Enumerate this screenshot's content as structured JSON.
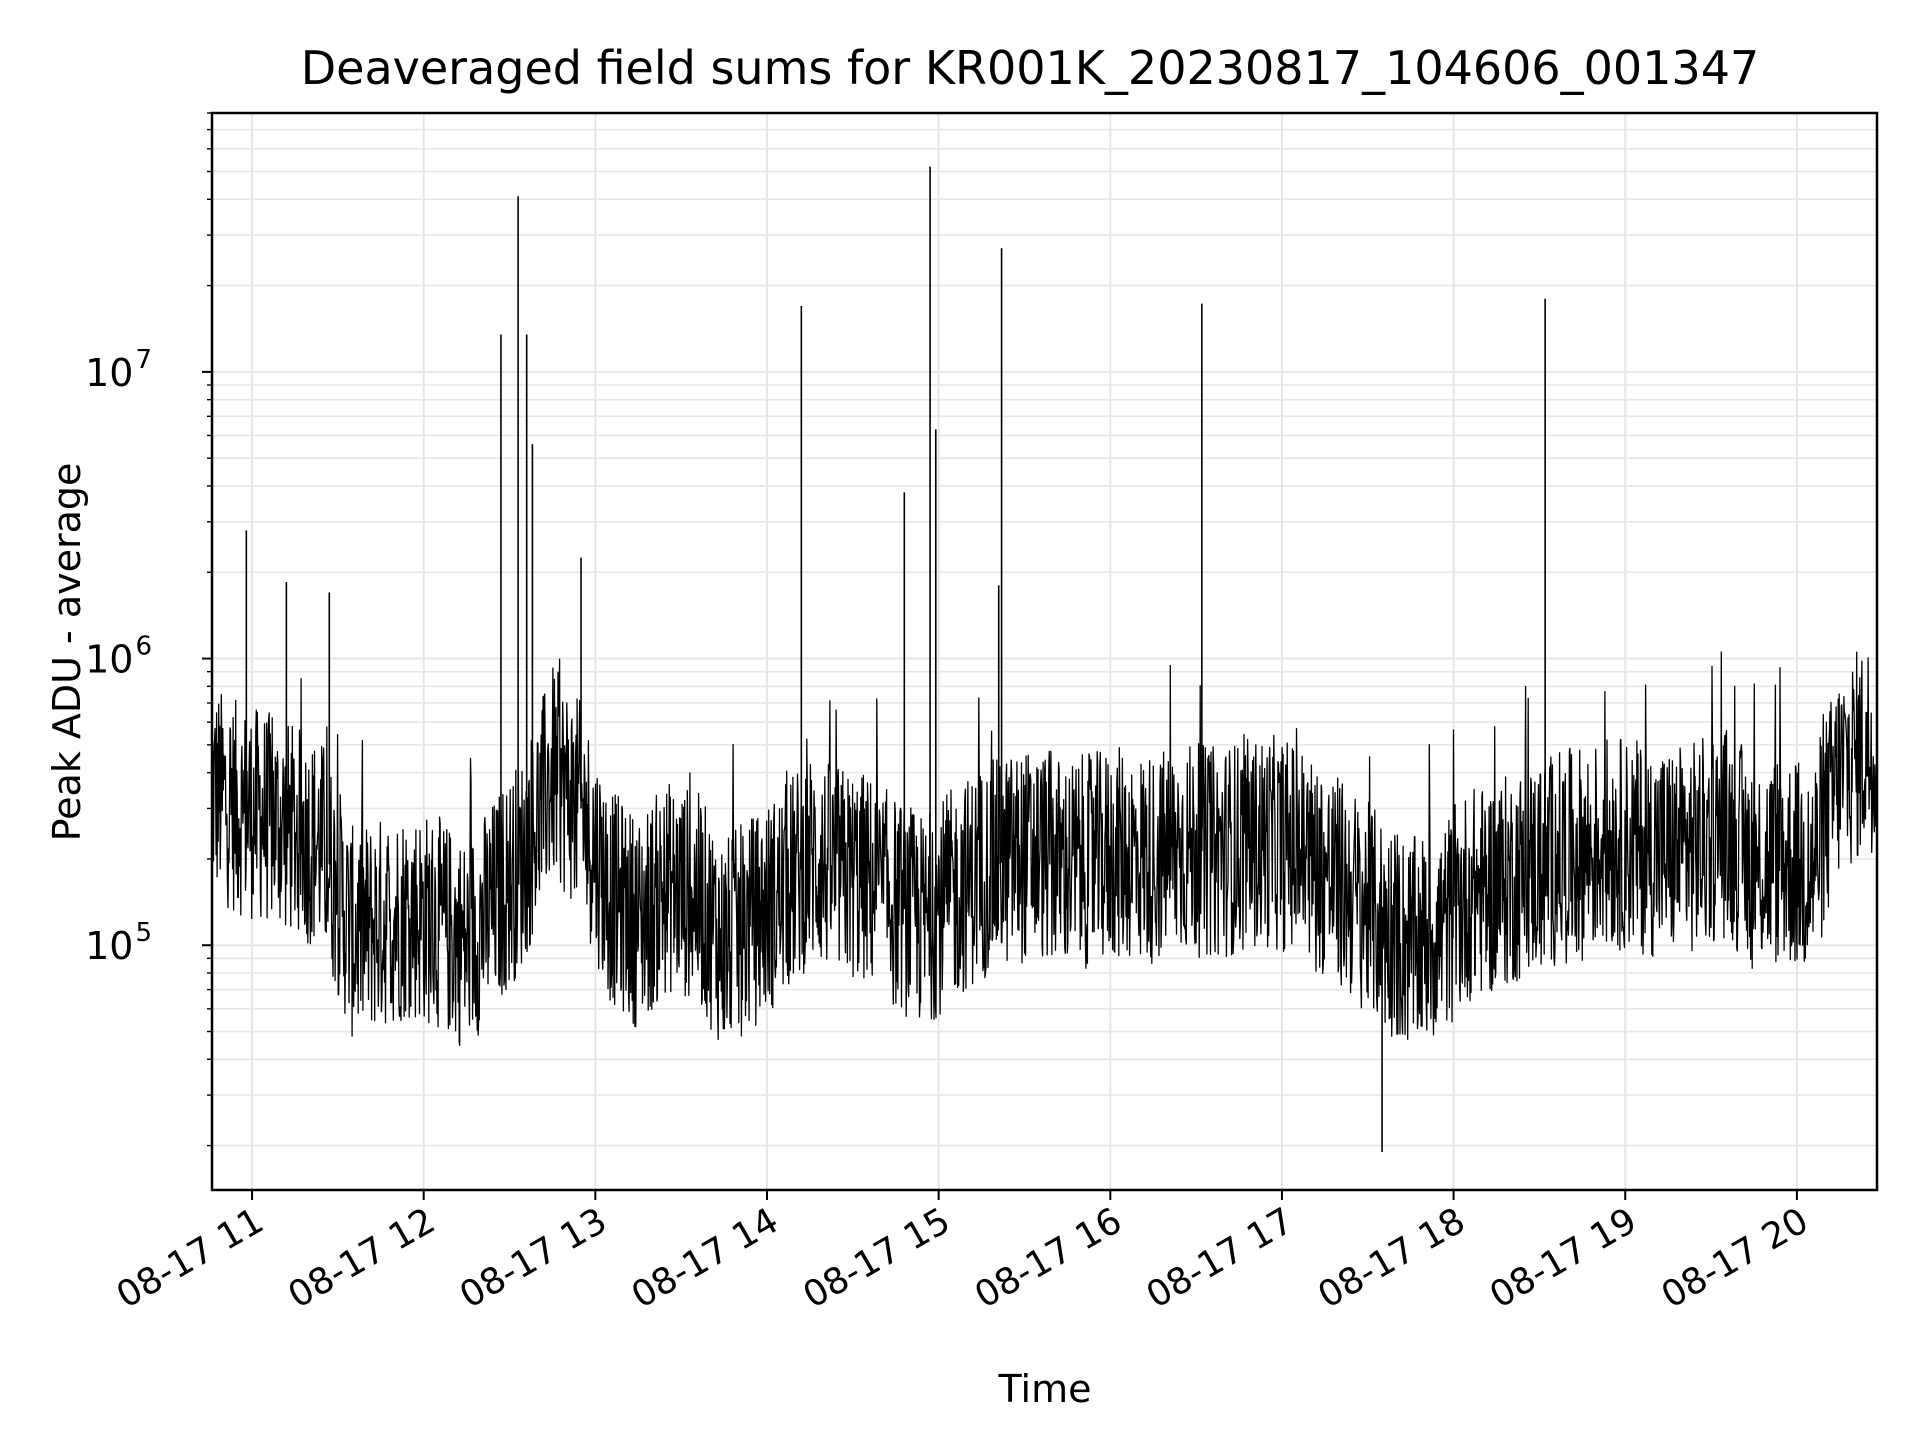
{
  "chart_data": {
    "type": "line",
    "title": "Deaveraged field sums for KR001K_20230817_104606_001347",
    "xlabel": "Time",
    "ylabel": "Peak ADU - average",
    "x_ticks": [
      "08-17 11",
      "08-17 12",
      "08-17 13",
      "08-17 14",
      "08-17 15",
      "08-17 16",
      "08-17 17",
      "08-17 18",
      "08-17 19",
      "08-17 20"
    ],
    "y_ticks": [
      {
        "base": "10",
        "exp": "5"
      },
      {
        "base": "10",
        "exp": "6"
      },
      {
        "base": "10",
        "exp": "7"
      }
    ],
    "yscale": "log",
    "xlim": [
      "2023-08-17 10:46",
      "2023-08-17 20:28"
    ],
    "ylim": [
      14000,
      80000000
    ],
    "grid": true,
    "line_color": "#000000",
    "grid_color": "#e6e6e6",
    "series": [
      {
        "x": [
          "2023-08-17 10:46",
          "2023-08-17 10:55",
          "2023-08-17 11:05",
          "2023-08-17 11:15",
          "2023-08-17 11:25",
          "2023-08-17 11:35",
          "2023-08-17 11:45",
          "2023-08-17 11:55",
          "2023-08-17 12:05",
          "2023-08-17 12:15",
          "2023-08-17 12:25",
          "2023-08-17 12:35",
          "2023-08-17 12:45",
          "2023-08-17 12:55",
          "2023-08-17 13:05",
          "2023-08-17 13:15",
          "2023-08-17 13:25",
          "2023-08-17 13:35",
          "2023-08-17 13:45",
          "2023-08-17 13:55",
          "2023-08-17 14:05",
          "2023-08-17 14:15",
          "2023-08-17 14:25",
          "2023-08-17 14:35",
          "2023-08-17 14:45",
          "2023-08-17 14:55",
          "2023-08-17 15:05",
          "2023-08-17 15:15",
          "2023-08-17 15:25",
          "2023-08-17 15:35",
          "2023-08-17 15:45",
          "2023-08-17 15:55",
          "2023-08-17 16:05",
          "2023-08-17 16:15",
          "2023-08-17 16:25",
          "2023-08-17 16:35",
          "2023-08-17 16:45",
          "2023-08-17 16:55",
          "2023-08-17 17:05",
          "2023-08-17 17:15",
          "2023-08-17 17:25",
          "2023-08-17 17:35",
          "2023-08-17 17:45",
          "2023-08-17 17:55",
          "2023-08-17 18:05",
          "2023-08-17 18:15",
          "2023-08-17 18:25",
          "2023-08-17 18:35",
          "2023-08-17 18:45",
          "2023-08-17 18:55",
          "2023-08-17 19:05",
          "2023-08-17 19:15",
          "2023-08-17 19:25",
          "2023-08-17 19:35",
          "2023-08-17 19:45",
          "2023-08-17 19:55",
          "2023-08-17 20:05",
          "2023-08-17 20:15",
          "2023-08-17 20:25"
        ],
        "y": [
          350000,
          300000,
          280000,
          250000,
          220000,
          110000,
          120000,
          130000,
          120000,
          100000,
          140000,
          200000,
          400000,
          300000,
          150000,
          120000,
          160000,
          150000,
          100000,
          120000,
          150000,
          200000,
          180000,
          170000,
          140000,
          120000,
          150000,
          180000,
          200000,
          210000,
          190000,
          200000,
          210000,
          200000,
          220000,
          210000,
          220000,
          230000,
          220000,
          180000,
          150000,
          120000,
          100000,
          110000,
          150000,
          160000,
          180000,
          200000,
          210000,
          230000,
          220000,
          210000,
          220000,
          250000,
          190000,
          200000,
          180000,
          400000,
          500000
        ]
      }
    ],
    "spikes": [
      {
        "x": "2023-08-17 10:58",
        "y": 2800000
      },
      {
        "x": "2023-08-17 11:12",
        "y": 1850000
      },
      {
        "x": "2023-08-17 11:27",
        "y": 1700000
      },
      {
        "x": "2023-08-17 12:27",
        "y": 13500000
      },
      {
        "x": "2023-08-17 12:33",
        "y": 41000000
      },
      {
        "x": "2023-08-17 12:36",
        "y": 13500000
      },
      {
        "x": "2023-08-17 12:38",
        "y": 5600000
      },
      {
        "x": "2023-08-17 12:55",
        "y": 2250000
      },
      {
        "x": "2023-08-17 14:12",
        "y": 17000000
      },
      {
        "x": "2023-08-17 14:48",
        "y": 3800000
      },
      {
        "x": "2023-08-17 14:57",
        "y": 52000000
      },
      {
        "x": "2023-08-17 14:59",
        "y": 6300000
      },
      {
        "x": "2023-08-17 15:21",
        "y": 1800000
      },
      {
        "x": "2023-08-17 15:22",
        "y": 27000000
      },
      {
        "x": "2023-08-17 16:32",
        "y": 17300000
      },
      {
        "x": "2023-08-17 18:32",
        "y": 18000000
      },
      {
        "x": "2023-08-17 17:35",
        "y": 19000
      }
    ]
  }
}
